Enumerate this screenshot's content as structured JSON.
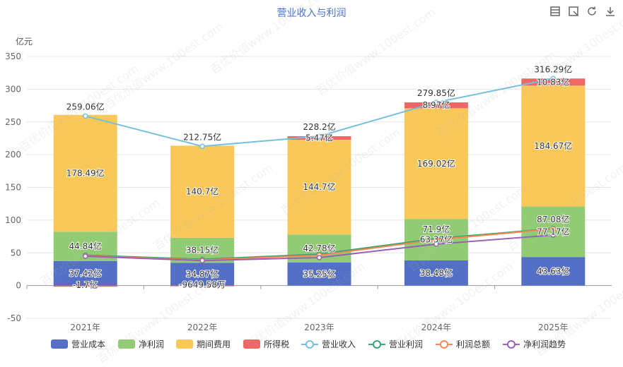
{
  "toolbar": {
    "items": [
      {
        "name": "data-view",
        "icon": "table-icon"
      },
      {
        "name": "restore",
        "icon": "restore-icon"
      },
      {
        "name": "refresh",
        "icon": "refresh-icon"
      },
      {
        "name": "download",
        "icon": "download-icon"
      }
    ]
  },
  "watermark_text": "百优价值www.100est.com",
  "chart_data": {
    "type": "bar",
    "title": "营业收入与利润",
    "unit_label": "亿元",
    "ylim": [
      -50,
      350
    ],
    "yticks": [
      -50,
      0,
      50,
      100,
      150,
      200,
      250,
      300,
      350
    ],
    "categories": [
      "2021年",
      "2022年",
      "2023年",
      "2024年",
      "2025年"
    ],
    "stacked_series": [
      {
        "name": "营业成本",
        "color": "#5470c6",
        "values": [
          37.42,
          34.87,
          35.25,
          38.48,
          43.63
        ],
        "labels": [
          "37.42亿",
          "34.87亿",
          "35.25亿",
          "38.48亿",
          "43.63亿"
        ]
      },
      {
        "name": "净利润",
        "color": "#91cc75",
        "values": [
          44.84,
          38.15,
          42.78,
          63.37,
          77.17
        ],
        "labels": [
          "44.84亿",
          "38.15亿",
          "42.78亿",
          "63.37亿",
          "77.17亿"
        ]
      },
      {
        "name": "期间费用",
        "color": "#fac858",
        "values": [
          178.49,
          140.7,
          144.7,
          169.02,
          184.67
        ],
        "labels": [
          "178.49亿",
          "140.7亿",
          "144.7亿",
          "169.02亿",
          "184.67亿"
        ]
      },
      {
        "name": "所得税",
        "color": "#ee6666",
        "values": [
          -1.7,
          -0.965,
          5.47,
          8.97,
          10.83
        ],
        "labels": [
          "-1.7亿",
          "-9649.58万",
          "5.47亿",
          "8.97亿",
          "10.83亿"
        ]
      }
    ],
    "line_series": [
      {
        "name": "营业收入",
        "color": "#73c0de",
        "values": [
          259.06,
          212.75,
          228.2,
          279.85,
          316.29
        ],
        "labels": [
          "259.06亿",
          "212.75亿",
          "228.2亿",
          "279.85亿",
          "316.29亿"
        ]
      },
      {
        "name": "营业利润",
        "color": "#3ba272",
        "values": [
          46.5,
          40.2,
          48.0,
          71.9,
          87.08
        ],
        "labels": [
          "",
          "",
          "",
          "71.9亿",
          "87.08亿"
        ]
      },
      {
        "name": "利润总额",
        "color": "#fc8452",
        "values": [
          45.5,
          39.1,
          46.3,
          70.2,
          86.5
        ],
        "labels": [
          "",
          "",
          "",
          "",
          ""
        ]
      },
      {
        "name": "净利润趋势",
        "color": "#9a60b4",
        "values": [
          44.84,
          38.15,
          42.78,
          63.37,
          77.17
        ],
        "labels": [
          "",
          "",
          "",
          "",
          ""
        ]
      }
    ]
  }
}
